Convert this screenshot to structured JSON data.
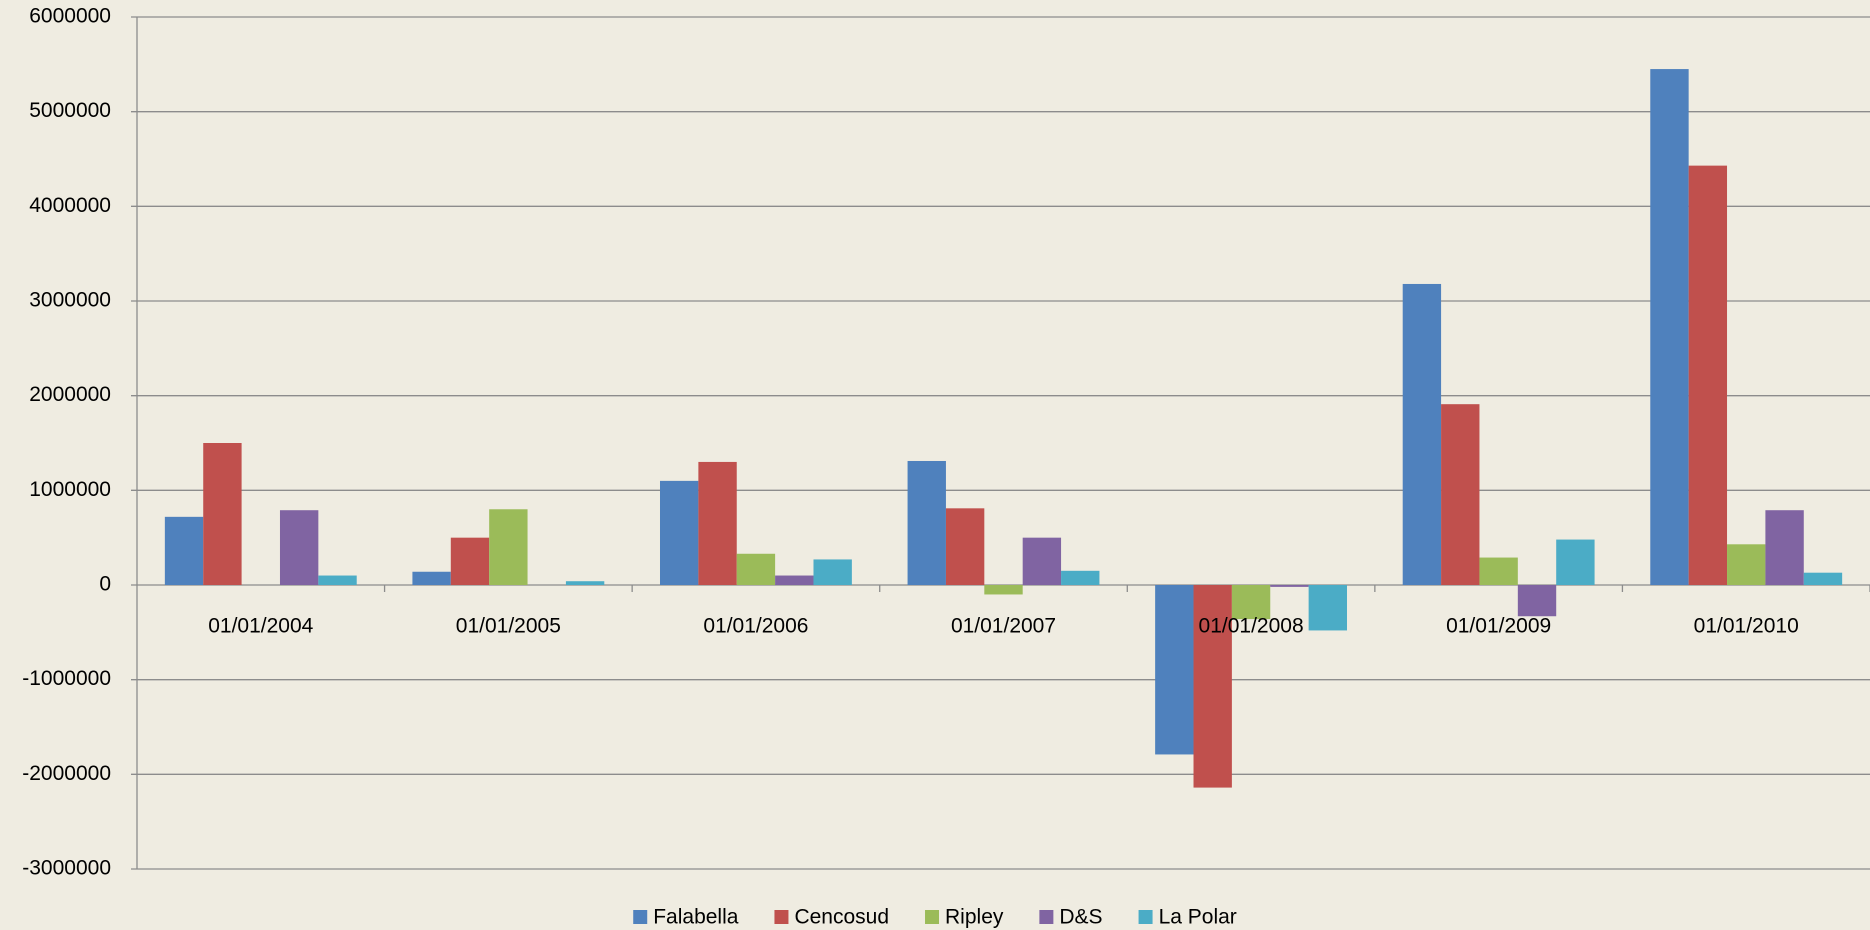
{
  "chart_data": {
    "type": "bar",
    "categories": [
      "01/01/2004",
      "01/01/2005",
      "01/01/2006",
      "01/01/2007",
      "01/01/2008",
      "01/01/2009",
      "01/01/2010"
    ],
    "series": [
      {
        "name": "Falabella",
        "color": "#4f81bd",
        "values": [
          720000,
          140000,
          1100000,
          1310000,
          -1790000,
          3180000,
          5450000
        ]
      },
      {
        "name": "Cencosud",
        "color": "#c0504d",
        "values": [
          1500000,
          500000,
          1300000,
          810000,
          -2140000,
          1910000,
          4430000
        ]
      },
      {
        "name": "Ripley",
        "color": "#9bbb59",
        "values": [
          0,
          800000,
          330000,
          -100000,
          -360000,
          290000,
          430000
        ]
      },
      {
        "name": "D&S",
        "color": "#8064a2",
        "values": [
          790000,
          0,
          100000,
          500000,
          -20000,
          -330000,
          790000
        ]
      },
      {
        "name": "La Polar",
        "color": "#4bacc6",
        "values": [
          100000,
          40000,
          270000,
          150000,
          -480000,
          480000,
          130000
        ]
      }
    ],
    "ylim": [
      -3000000,
      6000000
    ],
    "yticks": [
      -3000000,
      -2000000,
      -1000000,
      0,
      1000000,
      2000000,
      3000000,
      4000000,
      5000000,
      6000000
    ],
    "grid": true,
    "legend": "bottom"
  }
}
